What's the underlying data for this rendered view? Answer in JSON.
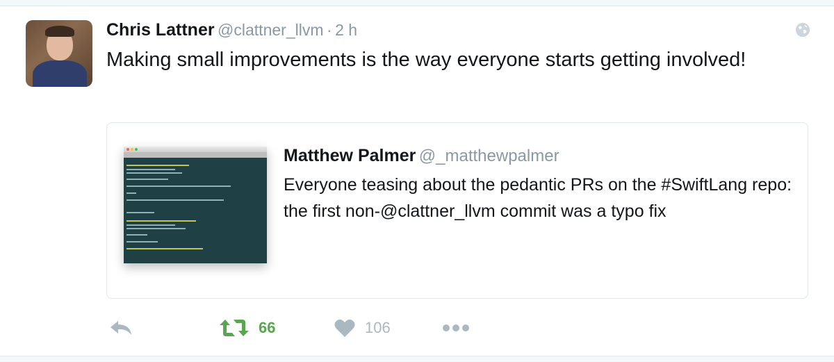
{
  "tweet": {
    "author_name": "Chris Lattner",
    "author_handle": "@clattner_llvm",
    "separator": "·",
    "time": "2 h",
    "text": "Making small improvements is the way everyone starts getting involved!",
    "quoted": {
      "author_name": "Matthew Palmer",
      "author_handle": "@_matthewpalmer",
      "text": "Everyone teasing about the pedantic PRs on the #SwiftLang repo: the first non-@clattner_llvm commit was a typo fix"
    },
    "actions": {
      "retweet_count": "66",
      "like_count": "106"
    }
  },
  "icons": {
    "reply": "reply-icon",
    "retweet": "retweet-icon",
    "like": "heart-icon",
    "more": "more-icon",
    "globe": "globe-icon"
  },
  "colors": {
    "retweet_active": "#5aa550",
    "muted": "#aab8c2",
    "handle": "#8899a6",
    "border": "#e1e8ed"
  }
}
